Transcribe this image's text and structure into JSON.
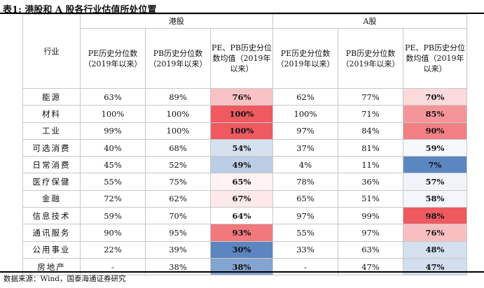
{
  "title": "表1: 港股和 A 股各行业估值所处位置",
  "header": {
    "industry": "行业",
    "hk_group": "港股",
    "a_group": "A股",
    "pe_col": "PE历史分位数（2019年以来）",
    "pb_col": "PB历史分位数（2019年以来）",
    "avg_col": "PE、PB历史分位数均值（2019年以来）"
  },
  "colors": {
    "high": "#ee5a60",
    "mid": "#ffffff",
    "low": "#5b86c1"
  },
  "rows": [
    {
      "industry": "能源",
      "hk_pe": "63%",
      "hk_pb": "89%",
      "hk_avg": "76%",
      "a_pe": "62%",
      "a_pb": "77%",
      "a_avg": "70%"
    },
    {
      "industry": "材料",
      "hk_pe": "100%",
      "hk_pb": "100%",
      "hk_avg": "100%",
      "a_pe": "100%",
      "a_pb": "71%",
      "a_avg": "85%"
    },
    {
      "industry": "工业",
      "hk_pe": "99%",
      "hk_pb": "100%",
      "hk_avg": "100%",
      "a_pe": "97%",
      "a_pb": "84%",
      "a_avg": "90%"
    },
    {
      "industry": "可选消费",
      "hk_pe": "40%",
      "hk_pb": "68%",
      "hk_avg": "54%",
      "a_pe": "37%",
      "a_pb": "81%",
      "a_avg": "59%"
    },
    {
      "industry": "日常消费",
      "hk_pe": "45%",
      "hk_pb": "52%",
      "hk_avg": "49%",
      "a_pe": "4%",
      "a_pb": "11%",
      "a_avg": "7%"
    },
    {
      "industry": "医疗保健",
      "hk_pe": "55%",
      "hk_pb": "75%",
      "hk_avg": "65%",
      "a_pe": "78%",
      "a_pb": "36%",
      "a_avg": "57%"
    },
    {
      "industry": "金融",
      "hk_pe": "72%",
      "hk_pb": "62%",
      "hk_avg": "67%",
      "a_pe": "65%",
      "a_pb": "51%",
      "a_avg": "58%"
    },
    {
      "industry": "信息技术",
      "hk_pe": "59%",
      "hk_pb": "70%",
      "hk_avg": "64%",
      "a_pe": "97%",
      "a_pb": "99%",
      "a_avg": "98%"
    },
    {
      "industry": "通讯服务",
      "hk_pe": "90%",
      "hk_pb": "95%",
      "hk_avg": "93%",
      "a_pe": "55%",
      "a_pb": "97%",
      "a_avg": "76%"
    },
    {
      "industry": "公用事业",
      "hk_pe": "22%",
      "hk_pb": "39%",
      "hk_avg": "30%",
      "a_pe": "33%",
      "a_pb": "63%",
      "a_avg": "48%"
    },
    {
      "industry": "房地产",
      "hk_pe": "-",
      "hk_pb": "38%",
      "hk_avg": "38%",
      "a_pe": "-",
      "a_pb": "47%",
      "a_avg": "47%"
    }
  ],
  "source": "数据来源：Wind，国泰海通证券研究"
}
